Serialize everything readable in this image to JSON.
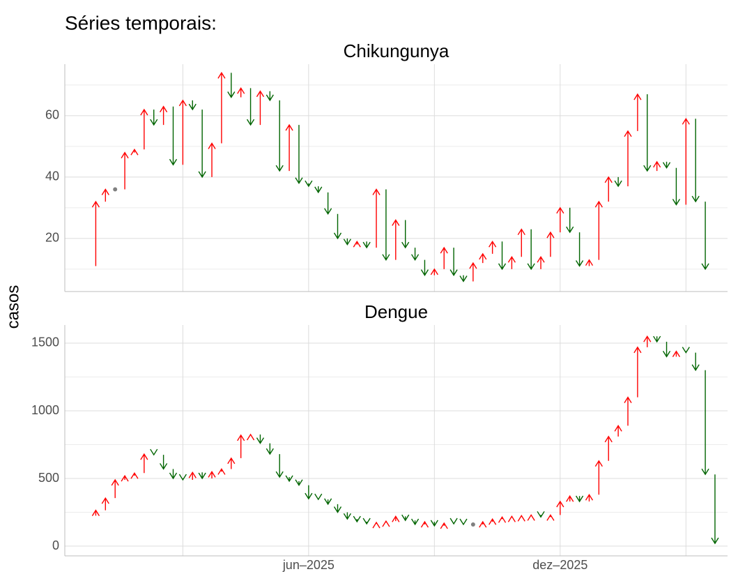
{
  "title": "Séries temporais:",
  "y_label": "casos",
  "chart_data": [
    {
      "type": "arrow",
      "title": "Chikungunya",
      "up_color": "#ff0000",
      "down_color": "#006400",
      "flat_color": "#808080",
      "start": 11,
      "x": [
        1,
        2,
        3,
        4,
        5,
        6,
        7,
        8,
        9,
        10,
        11,
        12,
        13,
        14,
        15,
        16,
        17,
        18,
        19,
        20,
        21,
        22,
        23,
        24,
        25,
        26,
        27,
        28,
        29,
        30,
        31,
        32,
        33,
        34,
        35,
        36,
        37,
        38,
        39,
        40,
        41,
        42,
        43,
        44,
        45,
        46,
        47,
        48,
        49,
        50,
        51,
        52,
        53,
        54,
        55,
        56,
        57,
        58,
        59,
        60,
        61,
        62,
        63,
        64
      ],
      "values": [
        32,
        36,
        36,
        48,
        49,
        62,
        57,
        63,
        44,
        65,
        62,
        40,
        51,
        74,
        66,
        69,
        57,
        68,
        65,
        42,
        57,
        38,
        37,
        35,
        28,
        20,
        18,
        19,
        17,
        36,
        13,
        26,
        17,
        13,
        8,
        10,
        17,
        8,
        6,
        12,
        15,
        19,
        10,
        14,
        23,
        10,
        14,
        22,
        30,
        22,
        11,
        13,
        32,
        40,
        37,
        55,
        67,
        42,
        45,
        43,
        31,
        59,
        32,
        10
      ],
      "xlim": [
        -2.2,
        66.3
      ],
      "xticks": [
        23,
        49
      ],
      "xminor": [
        10,
        36,
        62
      ],
      "ylim": [
        2.7,
        76.8
      ],
      "yticks": [
        20,
        40,
        60
      ],
      "yminor": [
        10,
        30,
        50,
        70
      ],
      "grid": true
    },
    {
      "type": "arrow",
      "title": "Dengue",
      "up_color": "#ff0000",
      "down_color": "#006400",
      "flat_color": "#808080",
      "start": 225,
      "x": [
        1,
        2,
        3,
        4,
        5,
        6,
        7,
        8,
        9,
        10,
        11,
        12,
        13,
        14,
        15,
        16,
        17,
        18,
        19,
        20,
        21,
        22,
        23,
        24,
        25,
        26,
        27,
        28,
        29,
        30,
        31,
        32,
        33,
        34,
        35,
        36,
        37,
        38,
        39,
        40,
        41,
        42,
        43,
        44,
        45,
        46,
        47,
        48,
        49,
        50,
        51,
        52,
        53,
        54,
        55,
        56,
        57,
        58,
        59,
        60,
        61,
        62,
        63,
        64,
        65
      ],
      "values": [
        265,
        355,
        490,
        520,
        540,
        680,
        675,
        570,
        500,
        490,
        545,
        500,
        550,
        570,
        650,
        820,
        825,
        760,
        680,
        510,
        480,
        450,
        350,
        345,
        310,
        250,
        200,
        180,
        165,
        175,
        185,
        220,
        190,
        160,
        180,
        150,
        170,
        165,
        160,
        160,
        180,
        200,
        215,
        220,
        225,
        230,
        215,
        230,
        330,
        370,
        330,
        380,
        630,
        810,
        890,
        1100,
        1470,
        1550,
        1510,
        1400,
        1440,
        1430,
        1300,
        530,
        20
      ],
      "xlim": [
        -2.2,
        66.3
      ],
      "xticks": [
        {
          "value": 23,
          "label": "jun–2025"
        },
        {
          "value": 49,
          "label": "dez–2025"
        }
      ],
      "xminor": [
        10,
        36,
        62
      ],
      "ylim": [
        -72,
        1634
      ],
      "yticks": [
        0,
        500,
        1000,
        1500
      ],
      "yminor": [
        250,
        750,
        1250
      ],
      "grid": true
    }
  ]
}
